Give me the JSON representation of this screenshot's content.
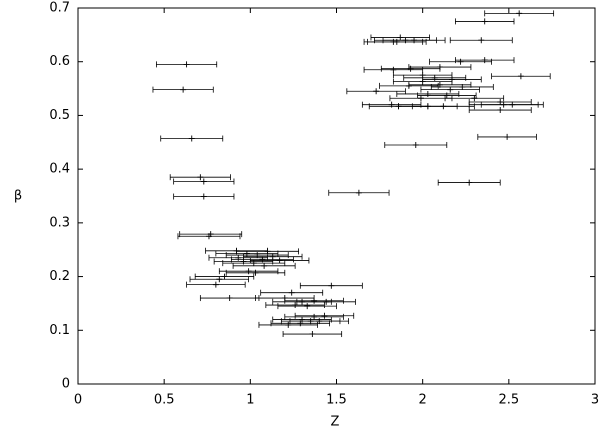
{
  "chart_data": {
    "type": "scatter",
    "xlabel": "Z",
    "ylabel": "β",
    "color": "#000000",
    "xlim": [
      0,
      3
    ],
    "ylim": [
      0,
      0.7
    ],
    "xticks": [
      0,
      0.5,
      1,
      1.5,
      2,
      2.5,
      3
    ],
    "yticks": [
      0,
      0.1,
      0.2,
      0.3,
      0.4,
      0.5,
      0.6,
      0.7
    ],
    "x": [
      0.63,
      0.61,
      0.66,
      0.71,
      0.73,
      0.73,
      1.63,
      1.96,
      2.27,
      2.49,
      2.56,
      2.36,
      1.87,
      1.9,
      1.85,
      1.83,
      1.95,
      2.34,
      2.36,
      2.22,
      2.1,
      1.93,
      1.83,
      2.0,
      2.07,
      2.57,
      2.17,
      2.0,
      2.1,
      1.92,
      2.23,
      2.16,
      1.73,
      2.03,
      2.14,
      1.99,
      2.3,
      2.45,
      2.47,
      2.52,
      1.82,
      1.86,
      2.03,
      2.12,
      2.45,
      0.76,
      0.77,
      0.92,
      1.1,
      0.98,
      1.04,
      1.13,
      0.93,
      1.07,
      1.17,
      0.96,
      1.02,
      1.08,
      0.99,
      1.03,
      0.85,
      0.82,
      0.8,
      0.88,
      1.24,
      1.47,
      1.2,
      1.3,
      1.37,
      1.44,
      1.26,
      1.33,
      1.37,
      1.43,
      1.3,
      1.35,
      1.4,
      1.29,
      1.22,
      1.36
    ],
    "values": [
      0.595,
      0.548,
      0.457,
      0.385,
      0.377,
      0.349,
      0.356,
      0.445,
      0.375,
      0.46,
      0.69,
      0.675,
      0.645,
      0.64,
      0.637,
      0.637,
      0.64,
      0.64,
      0.603,
      0.6,
      0.59,
      0.587,
      0.585,
      0.575,
      0.57,
      0.573,
      0.567,
      0.563,
      0.557,
      0.555,
      0.553,
      0.548,
      0.545,
      0.54,
      0.537,
      0.532,
      0.532,
      0.525,
      0.52,
      0.52,
      0.52,
      0.517,
      0.517,
      0.517,
      0.51,
      0.275,
      0.279,
      0.248,
      0.247,
      0.243,
      0.24,
      0.237,
      0.235,
      0.232,
      0.23,
      0.228,
      0.225,
      0.22,
      0.21,
      0.207,
      0.2,
      0.195,
      0.185,
      0.16,
      0.17,
      0.183,
      0.16,
      0.153,
      0.155,
      0.153,
      0.147,
      0.145,
      0.125,
      0.127,
      0.12,
      0.117,
      0.117,
      0.113,
      0.11,
      0.093
    ],
    "xerr": [
      0.175,
      0.175,
      0.18,
      0.175,
      0.175,
      0.175,
      0.175,
      0.18,
      0.18,
      0.17,
      0.2,
      0.17,
      0.17,
      0.18,
      0.17,
      0.17,
      0.18,
      0.18,
      0.17,
      0.18,
      0.18,
      0.17,
      0.17,
      0.17,
      0.18,
      0.17,
      0.17,
      0.17,
      0.18,
      0.17,
      0.18,
      0.17,
      0.17,
      0.18,
      0.17,
      0.18,
      0.17,
      0.18,
      0.2,
      0.18,
      0.17,
      0.17,
      0.17,
      0.18,
      0.18,
      0.18,
      0.18,
      0.18,
      0.18,
      0.18,
      0.18,
      0.17,
      0.17,
      0.18,
      0.17,
      0.17,
      0.18,
      0.18,
      0.17,
      0.17,
      0.17,
      0.17,
      0.17,
      0.17,
      0.18,
      0.18,
      0.17,
      0.17,
      0.17,
      0.17,
      0.17,
      0.17,
      0.17,
      0.17,
      0.17,
      0.17,
      0.17,
      0.17,
      0.17,
      0.17
    ]
  }
}
